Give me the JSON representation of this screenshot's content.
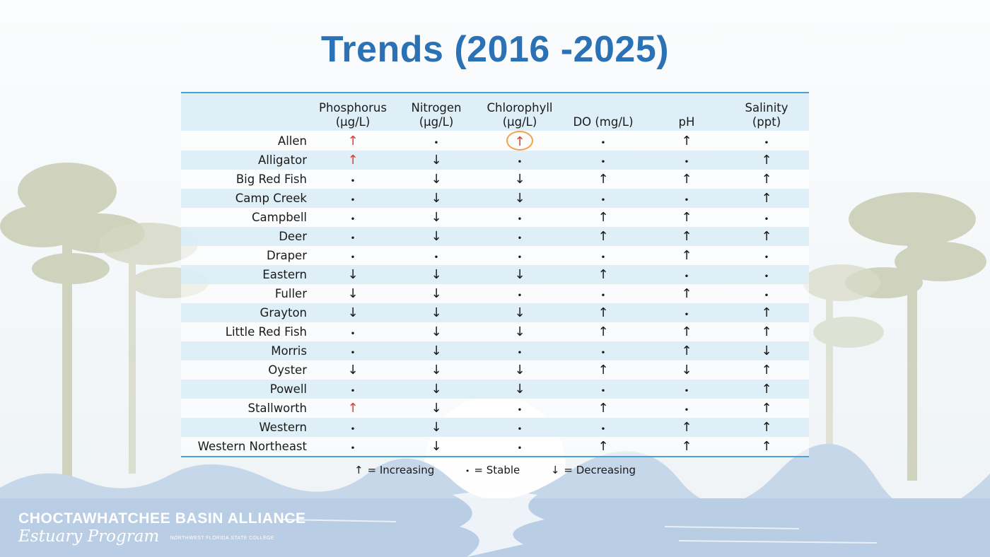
{
  "title": "Trends (2016 -2025)",
  "columns": [
    {
      "line1": "",
      "line2": ""
    },
    {
      "line1": "Phosphorus",
      "line2": "(µg/L)"
    },
    {
      "line1": "Nitrogen",
      "line2": "(µg/L)"
    },
    {
      "line1": "Chlorophyll",
      "line2": "(µg/L)"
    },
    {
      "line1": "",
      "line2": "DO (mg/L)"
    },
    {
      "line1": "",
      "line2": "pH"
    },
    {
      "line1": "Salinity",
      "line2": "(ppt)"
    }
  ],
  "symbols": {
    "up": "↑",
    "stable": "•",
    "down": "↓"
  },
  "rows": [
    {
      "site": "Allen",
      "values": [
        "up-red",
        "stable",
        "up-red-circled",
        "stable",
        "up",
        "stable"
      ]
    },
    {
      "site": "Alligator",
      "values": [
        "up-red",
        "down",
        "stable",
        "stable",
        "stable",
        "up"
      ]
    },
    {
      "site": "Big Red Fish",
      "values": [
        "stable",
        "down",
        "down",
        "up",
        "up",
        "up"
      ]
    },
    {
      "site": "Camp Creek",
      "values": [
        "stable",
        "down",
        "down",
        "stable",
        "stable",
        "up"
      ]
    },
    {
      "site": "Campbell",
      "values": [
        "stable",
        "down",
        "stable",
        "up",
        "up",
        "stable"
      ]
    },
    {
      "site": "Deer",
      "values": [
        "stable",
        "down",
        "stable",
        "up",
        "up",
        "up"
      ]
    },
    {
      "site": "Draper",
      "values": [
        "stable",
        "stable",
        "stable",
        "stable",
        "up",
        "stable"
      ]
    },
    {
      "site": "Eastern",
      "values": [
        "down",
        "down",
        "down",
        "up",
        "stable",
        "stable"
      ]
    },
    {
      "site": "Fuller",
      "values": [
        "down",
        "down",
        "stable",
        "stable",
        "up",
        "stable"
      ]
    },
    {
      "site": "Grayton",
      "values": [
        "down",
        "down",
        "down",
        "up",
        "stable",
        "up"
      ]
    },
    {
      "site": "Little Red Fish",
      "values": [
        "stable",
        "down",
        "down",
        "up",
        "up",
        "up"
      ]
    },
    {
      "site": "Morris",
      "values": [
        "stable",
        "down",
        "stable",
        "stable",
        "up",
        "down"
      ]
    },
    {
      "site": "Oyster",
      "values": [
        "down",
        "down",
        "down",
        "up",
        "down",
        "up"
      ]
    },
    {
      "site": "Powell",
      "values": [
        "stable",
        "down",
        "down",
        "stable",
        "stable",
        "up"
      ]
    },
    {
      "site": "Stallworth",
      "values": [
        "up-red",
        "down",
        "stable",
        "up",
        "stable",
        "up"
      ]
    },
    {
      "site": "Western",
      "values": [
        "stable",
        "down",
        "stable",
        "stable",
        "up",
        "up"
      ]
    },
    {
      "site": "Western Northeast",
      "values": [
        "stable",
        "down",
        "stable",
        "up",
        "up",
        "up"
      ]
    }
  ],
  "legend": {
    "up_symbol": "↑",
    "up_label": "= Increasing",
    "stable_symbol": "•",
    "stable_label": "=  Stable",
    "down_symbol": "↓",
    "down_label": "=  Decreasing"
  },
  "logo": {
    "line1": "CHOCTAWHATCHEE BASIN ALLIANCE",
    "line2": "Estuary Program",
    "line3": "NORTHWEST FLORIDA STATE COLLEGE"
  },
  "colors": {
    "title": "#2a72b5",
    "increase_highlight": "#e03a2e",
    "circle": "#f0a14a",
    "rule": "#4aa3d6"
  }
}
